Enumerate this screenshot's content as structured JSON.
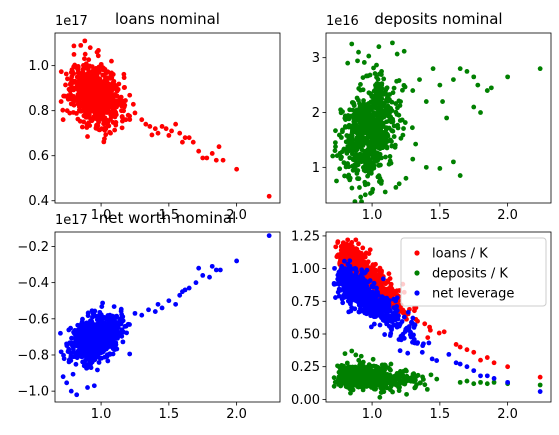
{
  "chart_data": [
    {
      "type": "scatter",
      "title": "loans nominal",
      "offset_text": "1e17",
      "xlim": [
        0.66,
        2.32
      ],
      "ylim": [
        0.39,
        1.145
      ],
      "xticks": [
        {
          "v": 1.0,
          "label": "1.0"
        },
        {
          "v": 1.5,
          "label": "1.5"
        },
        {
          "v": 2.0,
          "label": "2.0"
        }
      ],
      "yticks": [
        {
          "v": 0.4,
          "label": "0.4"
        },
        {
          "v": 0.6,
          "label": "0.6"
        },
        {
          "v": 0.8,
          "label": "0.8"
        },
        {
          "v": 1.0,
          "label": "1.0"
        }
      ],
      "series": [
        {
          "color": "#ff0000",
          "cloud": {
            "n": 750,
            "mx": 0.96,
            "sx": 0.09,
            "my": 0.87,
            "sy": 0.065,
            "slope": -0.18,
            "seed": 11
          },
          "points": [
            [
              1.15,
              0.8
            ],
            [
              1.2,
              0.78
            ],
            [
              1.25,
              0.79
            ],
            [
              1.3,
              0.76
            ],
            [
              1.33,
              0.74
            ],
            [
              1.36,
              0.73
            ],
            [
              1.4,
              0.72
            ],
            [
              1.42,
              0.7
            ],
            [
              1.45,
              0.73
            ],
            [
              1.48,
              0.72
            ],
            [
              1.5,
              0.69
            ],
            [
              1.52,
              0.71
            ],
            [
              1.55,
              0.74
            ],
            [
              1.58,
              0.7
            ],
            [
              1.6,
              0.66
            ],
            [
              1.62,
              0.68
            ],
            [
              1.65,
              0.68
            ],
            [
              1.68,
              0.66
            ],
            [
              1.72,
              0.62
            ],
            [
              1.75,
              0.59
            ],
            [
              1.78,
              0.59
            ],
            [
              1.82,
              0.61
            ],
            [
              1.85,
              0.58
            ],
            [
              1.87,
              0.64
            ],
            [
              1.9,
              0.58
            ],
            [
              2.0,
              0.54
            ],
            [
              2.24,
              0.42
            ],
            [
              0.8,
              1.05
            ],
            [
              0.85,
              1.09
            ],
            [
              0.88,
              1.11
            ],
            [
              0.92,
              1.08
            ],
            [
              0.97,
              1.06
            ],
            [
              0.78,
              0.97
            ],
            [
              0.72,
              0.76
            ],
            [
              0.75,
              0.8
            ]
          ]
        }
      ]
    },
    {
      "type": "scatter",
      "title": "deposits nominal",
      "offset_text": "1e16",
      "xlim": [
        0.66,
        2.32
      ],
      "ylim": [
        0.35,
        3.45
      ],
      "xticks": [
        {
          "v": 1.0,
          "label": "1.0"
        },
        {
          "v": 1.5,
          "label": "1.5"
        },
        {
          "v": 2.0,
          "label": "2.0"
        }
      ],
      "yticks": [
        {
          "v": 1,
          "label": "1"
        },
        {
          "v": 2,
          "label": "2"
        },
        {
          "v": 3,
          "label": "3"
        }
      ],
      "series": [
        {
          "color": "#008000",
          "cloud": {
            "n": 750,
            "mx": 0.98,
            "sx": 0.1,
            "my": 1.65,
            "sy": 0.45,
            "slope": 1.2,
            "seed": 23
          },
          "points": [
            [
              1.3,
              2.4
            ],
            [
              1.35,
              2.6
            ],
            [
              1.4,
              2.2
            ],
            [
              1.45,
              2.8
            ],
            [
              1.5,
              2.5
            ],
            [
              1.52,
              2.2
            ],
            [
              1.55,
              1.9
            ],
            [
              1.6,
              2.6
            ],
            [
              1.65,
              2.8
            ],
            [
              1.7,
              2.75
            ],
            [
              1.75,
              2.1
            ],
            [
              1.78,
              2.5
            ],
            [
              1.8,
              2.0
            ],
            [
              1.85,
              2.4
            ],
            [
              1.88,
              2.45
            ],
            [
              1.75,
              2.65
            ],
            [
              2.0,
              2.65
            ],
            [
              2.24,
              2.8
            ],
            [
              0.85,
              3.25
            ],
            [
              0.9,
              3.1
            ],
            [
              1.05,
              3.2
            ],
            [
              1.15,
              3.27
            ],
            [
              0.82,
              2.9
            ],
            [
              1.3,
              1.15
            ],
            [
              1.4,
              1.0
            ],
            [
              1.5,
              0.98
            ],
            [
              1.6,
              1.1
            ],
            [
              1.65,
              0.85
            ],
            [
              1.2,
              0.7
            ],
            [
              1.25,
              0.8
            ],
            [
              0.95,
              0.5
            ],
            [
              1.0,
              0.55
            ]
          ]
        }
      ]
    },
    {
      "type": "scatter",
      "title": "net worth nominal",
      "offset_text": "1e17",
      "xlim": [
        0.66,
        2.32
      ],
      "ylim": [
        -1.06,
        -0.12
      ],
      "xticks": [
        {
          "v": 1.0,
          "label": "1.0"
        },
        {
          "v": 1.5,
          "label": "1.5"
        },
        {
          "v": 2.0,
          "label": "2.0"
        }
      ],
      "yticks": [
        {
          "v": -1.0,
          "label": "−1.0"
        },
        {
          "v": -0.8,
          "label": "−0.8"
        },
        {
          "v": -0.6,
          "label": "−0.6"
        },
        {
          "v": -0.4,
          "label": "−0.4"
        },
        {
          "v": -0.2,
          "label": "−0.2"
        }
      ],
      "series": [
        {
          "color": "#0000ff",
          "cloud": {
            "n": 750,
            "mx": 0.96,
            "sx": 0.09,
            "my": -0.71,
            "sy": 0.06,
            "slope": 0.3,
            "seed": 37
          },
          "points": [
            [
              1.15,
              -0.62
            ],
            [
              1.2,
              -0.63
            ],
            [
              1.25,
              -0.57
            ],
            [
              1.3,
              -0.58
            ],
            [
              1.35,
              -0.55
            ],
            [
              1.4,
              -0.56
            ],
            [
              1.42,
              -0.52
            ],
            [
              1.45,
              -0.54
            ],
            [
              1.5,
              -0.5
            ],
            [
              1.55,
              -0.52
            ],
            [
              1.58,
              -0.47
            ],
            [
              1.6,
              -0.45
            ],
            [
              1.62,
              -0.44
            ],
            [
              1.65,
              -0.43
            ],
            [
              1.7,
              -0.4
            ],
            [
              1.72,
              -0.32
            ],
            [
              1.75,
              -0.36
            ],
            [
              1.8,
              -0.37
            ],
            [
              1.82,
              -0.31
            ],
            [
              1.85,
              -0.33
            ],
            [
              1.88,
              -0.33
            ],
            [
              2.0,
              -0.28
            ],
            [
              2.24,
              -0.14
            ],
            [
              0.72,
              -0.92
            ],
            [
              0.78,
              -1.0
            ],
            [
              0.82,
              -1.02
            ],
            [
              0.9,
              -0.98
            ],
            [
              0.95,
              -0.97
            ],
            [
              0.7,
              -0.68
            ]
          ]
        }
      ]
    },
    {
      "type": "scatter",
      "title": "",
      "offset_text": "",
      "xlim": [
        0.66,
        2.32
      ],
      "ylim": [
        -0.02,
        1.28
      ],
      "xticks": [
        {
          "v": 1.0,
          "label": "1.0"
        },
        {
          "v": 1.5,
          "label": "1.5"
        },
        {
          "v": 2.0,
          "label": "2.0"
        }
      ],
      "yticks": [
        {
          "v": 0.0,
          "label": "0.00"
        },
        {
          "v": 0.25,
          "label": "0.25"
        },
        {
          "v": 0.5,
          "label": "0.50"
        },
        {
          "v": 0.75,
          "label": "0.75"
        },
        {
          "v": 1.0,
          "label": "1.00"
        },
        {
          "v": 1.25,
          "label": "1.25"
        }
      ],
      "legend": {
        "placement": "top-right"
      },
      "series": [
        {
          "name": "loans / K",
          "color": "#ff0000",
          "band": {
            "n": 500,
            "x0": 0.78,
            "x1": 1.6,
            "y0": 1.12,
            "y1": 0.38,
            "noise": 0.06,
            "seed": 51
          },
          "points": [
            [
              1.62,
              0.42
            ],
            [
              1.65,
              0.4
            ],
            [
              1.7,
              0.38
            ],
            [
              1.75,
              0.36
            ],
            [
              1.8,
              0.3
            ],
            [
              1.85,
              0.32
            ],
            [
              1.9,
              0.28
            ],
            [
              2.0,
              0.25
            ],
            [
              2.24,
              0.17
            ],
            [
              0.78,
              1.15
            ],
            [
              0.82,
              1.22
            ],
            [
              0.85,
              1.2
            ],
            [
              0.88,
              1.22
            ],
            [
              0.9,
              1.19
            ]
          ]
        },
        {
          "name": "deposits / K",
          "color": "#008000",
          "band": {
            "n": 600,
            "x0": 0.78,
            "x1": 1.6,
            "y0": 0.18,
            "y1": 0.14,
            "noise": 0.045,
            "seed": 63
          },
          "points": [
            [
              0.8,
              0.35
            ],
            [
              0.85,
              0.37
            ],
            [
              0.88,
              0.34
            ],
            [
              0.92,
              0.33
            ],
            [
              1.65,
              0.13
            ],
            [
              1.7,
              0.14
            ],
            [
              1.75,
              0.12
            ],
            [
              1.8,
              0.13
            ],
            [
              1.85,
              0.12
            ],
            [
              1.9,
              0.13
            ],
            [
              2.0,
              0.12
            ],
            [
              2.24,
              0.11
            ],
            [
              0.72,
              0.1
            ]
          ]
        },
        {
          "name": "net leverage",
          "color": "#0000ff",
          "band": {
            "n": 650,
            "x0": 0.78,
            "x1": 1.6,
            "y0": 0.92,
            "y1": 0.26,
            "noise": 0.065,
            "seed": 77
          },
          "points": [
            [
              1.62,
              0.28
            ],
            [
              1.65,
              0.27
            ],
            [
              1.7,
              0.25
            ],
            [
              1.75,
              0.22
            ],
            [
              1.8,
              0.18
            ],
            [
              1.85,
              0.18
            ],
            [
              1.9,
              0.16
            ],
            [
              2.0,
              0.13
            ],
            [
              2.24,
              0.06
            ],
            [
              0.72,
              0.88
            ],
            [
              0.75,
              0.82
            ],
            [
              0.8,
              1.0
            ],
            [
              0.83,
              1.02
            ]
          ]
        }
      ]
    }
  ]
}
